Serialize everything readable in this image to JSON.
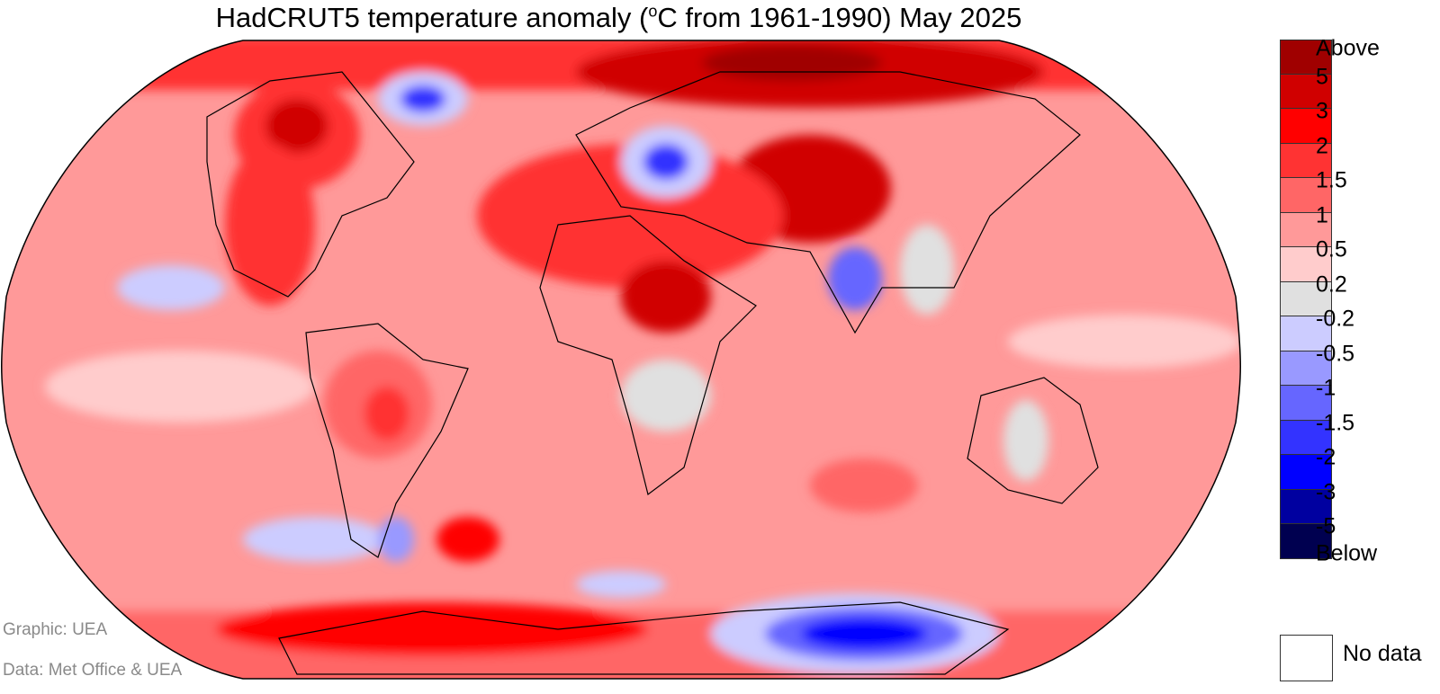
{
  "title": {
    "prefix": "HadCRUT5 temperature anomaly (",
    "sup": "o",
    "suffix": "C from 1961-1990) May 2025"
  },
  "legend": {
    "colors": [
      "#a00000",
      "#d00000",
      "#ff0000",
      "#ff3333",
      "#ff6666",
      "#ff9999",
      "#ffcccc",
      "#e0e0e0",
      "#ccccff",
      "#9999ff",
      "#6666ff",
      "#3333ff",
      "#0000ff",
      "#0000a0",
      "#000050"
    ],
    "top_label": "Above",
    "boundaries": [
      "5",
      "3",
      "2",
      "1.5",
      "1",
      "0.5",
      "0.2",
      "-0.2",
      "-0.5",
      "-1",
      "-1.5",
      "-2",
      "-3",
      "-5"
    ],
    "bottom_label": "Below",
    "no_data_label": "No data"
  },
  "credits": {
    "graphic": "Graphic: UEA",
    "data": "Data: Met Office & UEA"
  }
}
